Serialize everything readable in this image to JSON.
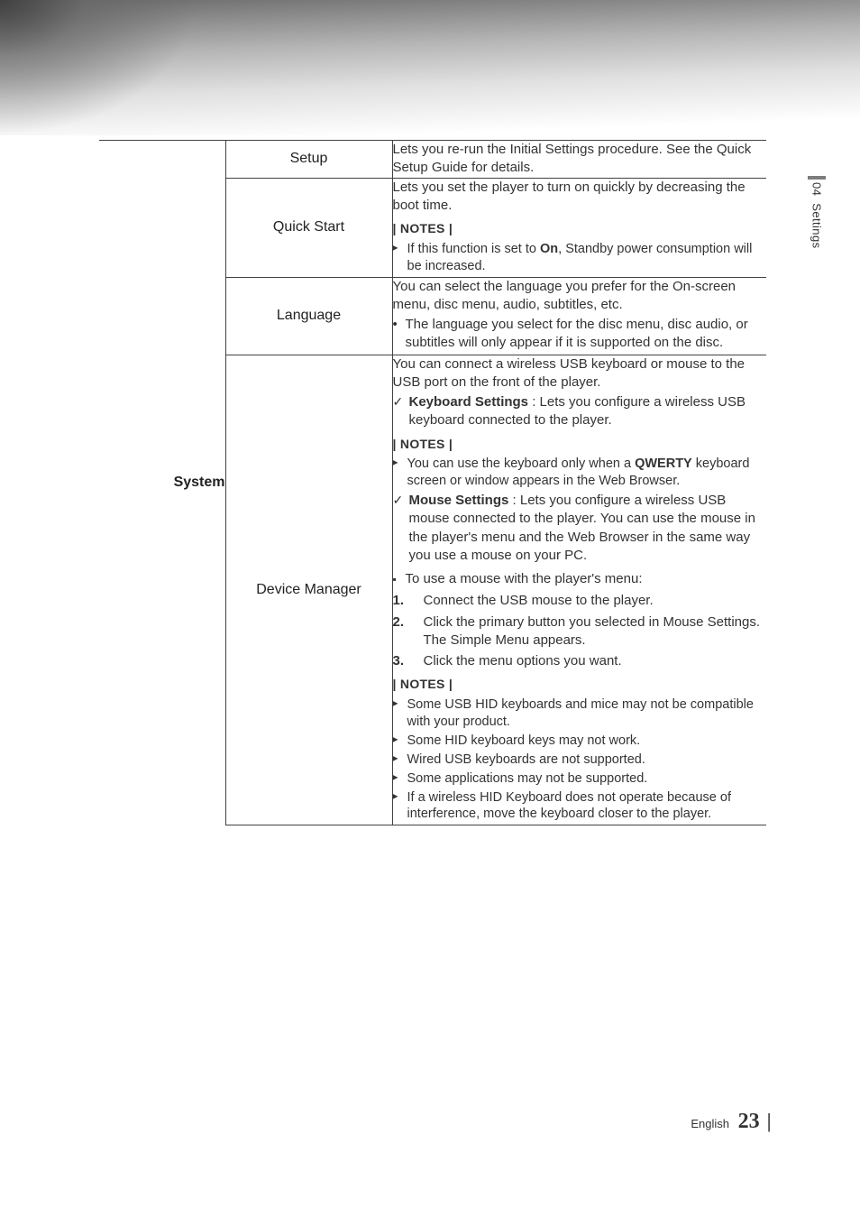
{
  "sidebar": {
    "chapter_num": "04",
    "chapter_title": "Settings"
  },
  "footer": {
    "lang": "English",
    "page": "23"
  },
  "category": "System",
  "rows": {
    "setup": {
      "label": "Setup",
      "desc": "Lets you re-run the Initial Settings procedure. See the Quick Setup Guide for details."
    },
    "quick_start": {
      "label": "Quick Start",
      "desc": "Lets you set the player to turn on quickly by decreasing the boot time.",
      "notes_tag": "| NOTES |",
      "note1_a": "If this function is set to ",
      "note1_on": "On",
      "note1_b": ", Standby power consumption will be increased."
    },
    "language": {
      "label": "Language",
      "desc": "You can select the language you prefer for the On-screen menu, disc menu, audio, subtitles, etc.",
      "bullet1": "The language you select for the disc menu, disc audio, or subtitles will only appear if it is supported on the disc."
    },
    "device_manager": {
      "label": "Device Manager",
      "intro": "You can connect a wireless USB keyboard or mouse to the USB port on the front of the player.",
      "kb_bold": "Keyboard Settings",
      "kb_text": " : Lets you configure a wireless USB keyboard connected to the player.",
      "notes_tag1": "| NOTES |",
      "kb_note_a": "You can use the keyboard only when a ",
      "kb_note_q": "QWERTY",
      "kb_note_b": " keyboard screen or window appears in the Web Browser.",
      "mouse_bold": "Mouse Settings",
      "mouse_text": " : Lets you configure a wireless USB mouse connected to the player. You can use the mouse in the player's menu and the Web Browser in the same way you use a mouse on your PC.",
      "mouse_heading": "To use a mouse with the player's menu:",
      "step1": "Connect the USB mouse to the player.",
      "step2": "Click the primary button you selected in Mouse Settings. The Simple Menu appears.",
      "step3": "Click the menu options you want.",
      "notes_tag2": "| NOTES |",
      "fn1": "Some USB HID keyboards and mice may not be compatible with your product.",
      "fn2": "Some HID keyboard keys may not work.",
      "fn3": "Wired USB keyboards are not supported.",
      "fn4": "Some applications may not be supported.",
      "fn5": "If a wireless HID Keyboard does not operate because of interference, move the keyboard closer to the player."
    }
  }
}
